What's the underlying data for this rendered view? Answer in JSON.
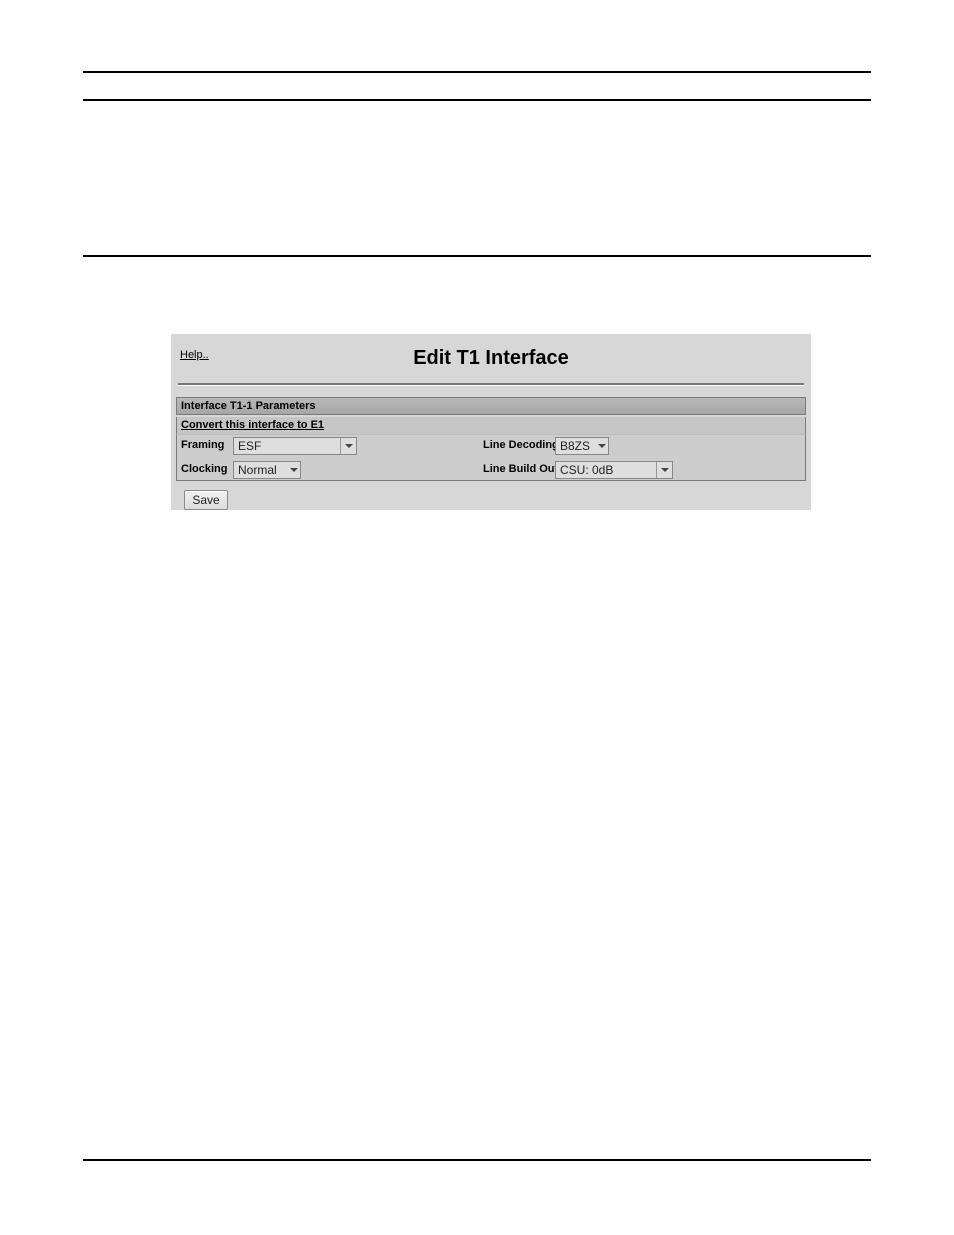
{
  "shot": {
    "help_label": "Help..",
    "title": "Edit T1 Interface",
    "section_header": "Interface T1-1 Parameters",
    "convert_link": "Convert this interface to E1",
    "fields": {
      "framing": {
        "label": "Framing",
        "value": "ESF"
      },
      "clocking": {
        "label": "Clocking",
        "value": "Normal"
      },
      "decoding": {
        "label": "Line Decoding",
        "value": "B8ZS"
      },
      "buildout": {
        "label": "Line Build Out",
        "value": "CSU: 0dB"
      }
    },
    "save_label": "Save",
    "colors": {
      "panel_bg": "#d7d7d7",
      "header_bg_top": "#b9b9b9",
      "header_bg_bot": "#a6a6a6",
      "param_bg": "#cdcdcd",
      "combo_bg": "#dedede",
      "border": "#7a7a7a"
    }
  }
}
